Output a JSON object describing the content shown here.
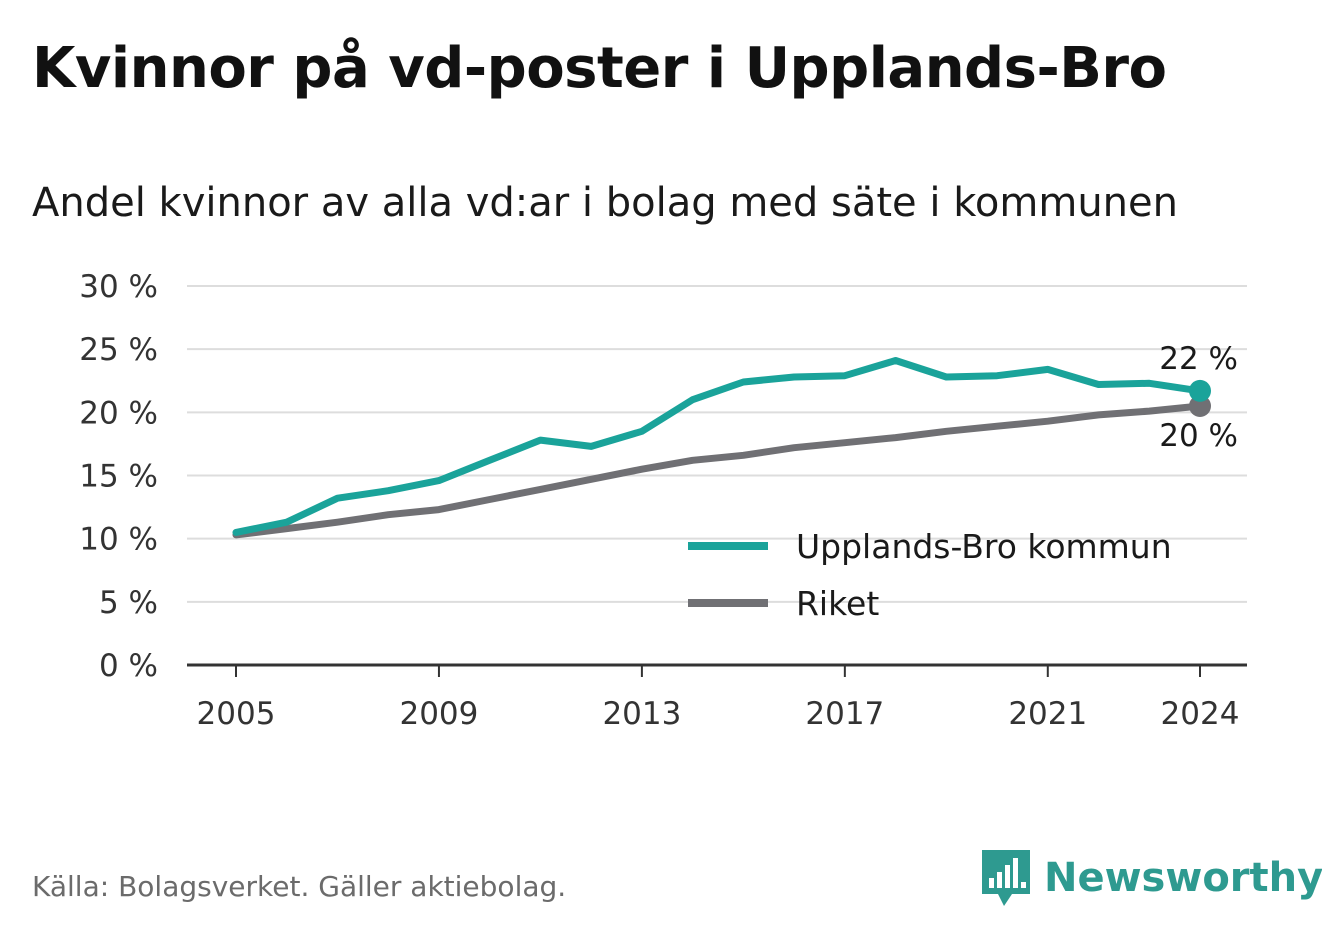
{
  "title": "Kvinnor på vd-poster i Upplands-Bro",
  "subtitle": "Andel kvinnor av alla vd:ar i bolag med säte i kommunen",
  "source": "Källa: Bolagsverket. Gäller aktiebolag.",
  "brand": {
    "name": "Newsworthy",
    "icon": "newsworthy-logo-icon"
  },
  "colors": {
    "upplands_bro": "#1aa39a",
    "riket": "#707074",
    "grid": "#dddddd",
    "axis": "#333333"
  },
  "chart_data": {
    "type": "line",
    "title": "Kvinnor på vd-poster i Upplands-Bro",
    "subtitle": "Andel kvinnor av alla vd:ar i bolag med säte i kommunen",
    "x": [
      2005,
      2006,
      2007,
      2008,
      2009,
      2010,
      2011,
      2012,
      2013,
      2014,
      2015,
      2016,
      2017,
      2018,
      2019,
      2020,
      2021,
      2022,
      2023,
      2024
    ],
    "x_ticks": [
      "2005",
      "2009",
      "2013",
      "2017",
      "2021",
      "2024"
    ],
    "y_ticks": [
      "0 %",
      "5 %",
      "10 %",
      "15 %",
      "20 %",
      "25 %",
      "30 %"
    ],
    "ylim": [
      0,
      30
    ],
    "grid": true,
    "legend_position": "bottom-right",
    "series": [
      {
        "name": "Upplands-Bro kommun",
        "color": "#1aa39a",
        "values": [
          10.5,
          11.3,
          13.2,
          13.8,
          14.6,
          16.2,
          17.8,
          17.3,
          18.5,
          21.0,
          22.4,
          22.8,
          22.9,
          24.1,
          22.8,
          22.9,
          23.4,
          22.2,
          22.3,
          21.7
        ],
        "end_label": "22 %"
      },
      {
        "name": "Riket",
        "color": "#707074",
        "values": [
          10.3,
          10.8,
          11.3,
          11.9,
          12.3,
          13.1,
          13.9,
          14.7,
          15.5,
          16.2,
          16.6,
          17.2,
          17.6,
          18.0,
          18.5,
          18.9,
          19.3,
          19.8,
          20.1,
          20.5
        ],
        "end_label": "20 %"
      }
    ]
  }
}
